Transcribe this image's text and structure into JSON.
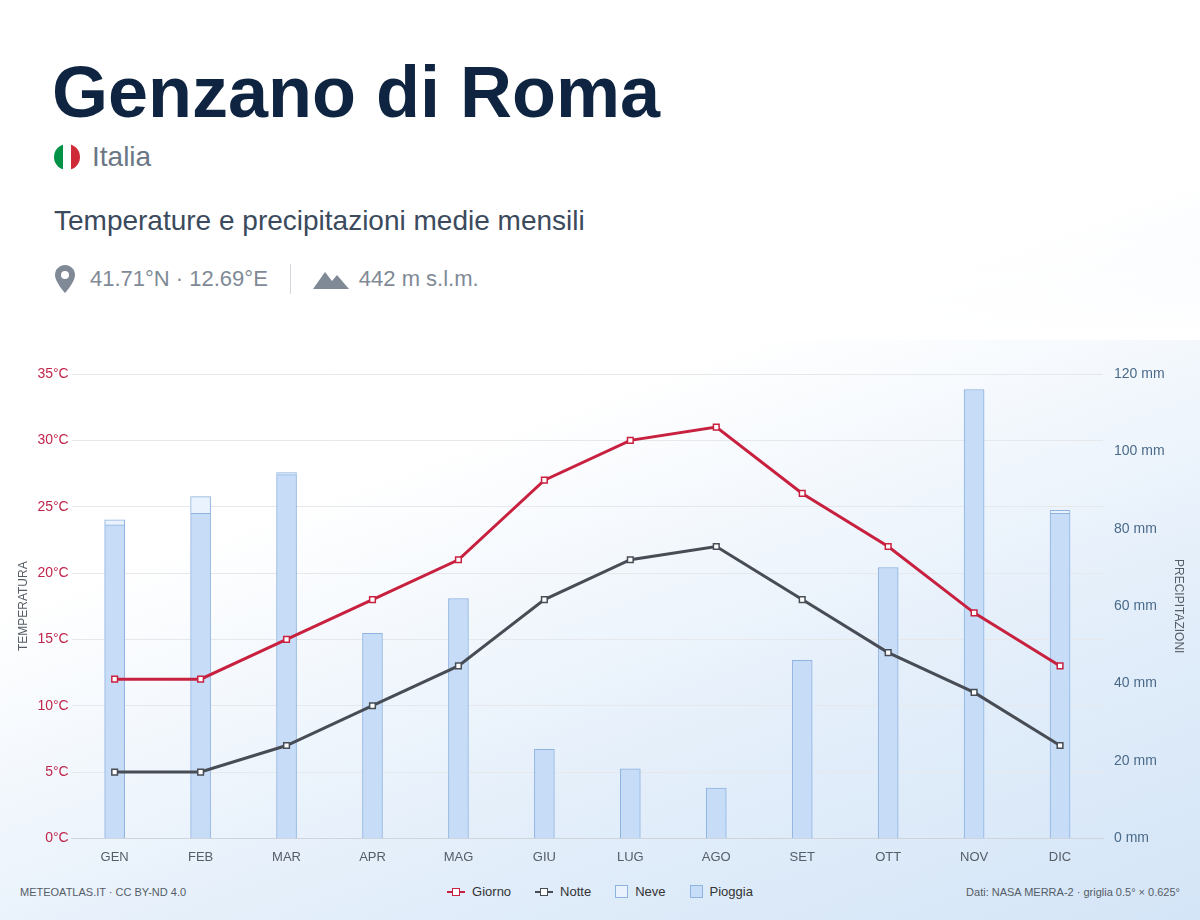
{
  "header": {
    "title": "Genzano di Roma",
    "country": "Italia",
    "subtitle": "Temperature e precipitazioni medie mensili",
    "coordinates": "41.71°N · 12.69°E",
    "elevation": "442 m s.l.m."
  },
  "footer": {
    "source_left": "METEOATLAS.IT · CC BY-ND 4.0",
    "source_right": "Dati: NASA MERRA-2 · griglia 0.5° × 0.625°"
  },
  "chart_data": {
    "type": "bar",
    "categories": [
      "GEN",
      "FEB",
      "MAR",
      "APR",
      "MAG",
      "GIU",
      "LUG",
      "AGO",
      "SET",
      "OTT",
      "NOV",
      "DIC"
    ],
    "series": [
      {
        "name": "Giorno",
        "type": "line",
        "color": "#c8203f",
        "marker": "square",
        "axis": "y",
        "values": [
          12,
          12,
          15,
          18,
          21,
          27,
          30,
          31,
          26,
          22,
          17,
          13
        ]
      },
      {
        "name": "Notte",
        "type": "line",
        "color": "#474c55",
        "marker": "square",
        "axis": "y",
        "values": [
          5,
          5,
          7,
          10,
          13,
          18,
          21,
          22,
          18,
          14,
          11,
          7
        ]
      },
      {
        "name": "Neve",
        "type": "bar",
        "color": "#eaf2fd",
        "axis": "y2",
        "values": [
          1.3,
          4.3,
          0.5,
          0,
          0,
          0,
          0,
          0,
          0,
          0,
          0,
          0.8
        ]
      },
      {
        "name": "Pioggia",
        "type": "bar",
        "color": "#c6dcf7",
        "axis": "y2",
        "values": [
          81,
          84,
          94,
          53,
          62,
          23,
          18,
          13,
          46,
          70,
          116,
          84
        ]
      }
    ],
    "y_label": "TEMPERATURA",
    "y2_label": "PRECIPITAZIONI",
    "ylim": [
      0,
      35
    ],
    "yticks": [
      {
        "value": 0,
        "label": "0°C"
      },
      {
        "value": 5,
        "label": "5°C"
      },
      {
        "value": 10,
        "label": "10°C"
      },
      {
        "value": 15,
        "label": "15°C"
      },
      {
        "value": 20,
        "label": "20°C"
      },
      {
        "value": 25,
        "label": "25°C"
      },
      {
        "value": 30,
        "label": "30°C"
      },
      {
        "value": 35,
        "label": "35°C"
      }
    ],
    "y2lim": [
      0,
      120
    ],
    "y2ticks": [
      {
        "value": 0,
        "label": "0 mm"
      },
      {
        "value": 20,
        "label": "20 mm"
      },
      {
        "value": 40,
        "label": "40 mm"
      },
      {
        "value": 60,
        "label": "60 mm"
      },
      {
        "value": 80,
        "label": "80 mm"
      },
      {
        "value": 100,
        "label": "100 mm"
      },
      {
        "value": 120,
        "label": "120 mm"
      }
    ],
    "grid": true,
    "stacked": true,
    "legend": "bottom"
  }
}
